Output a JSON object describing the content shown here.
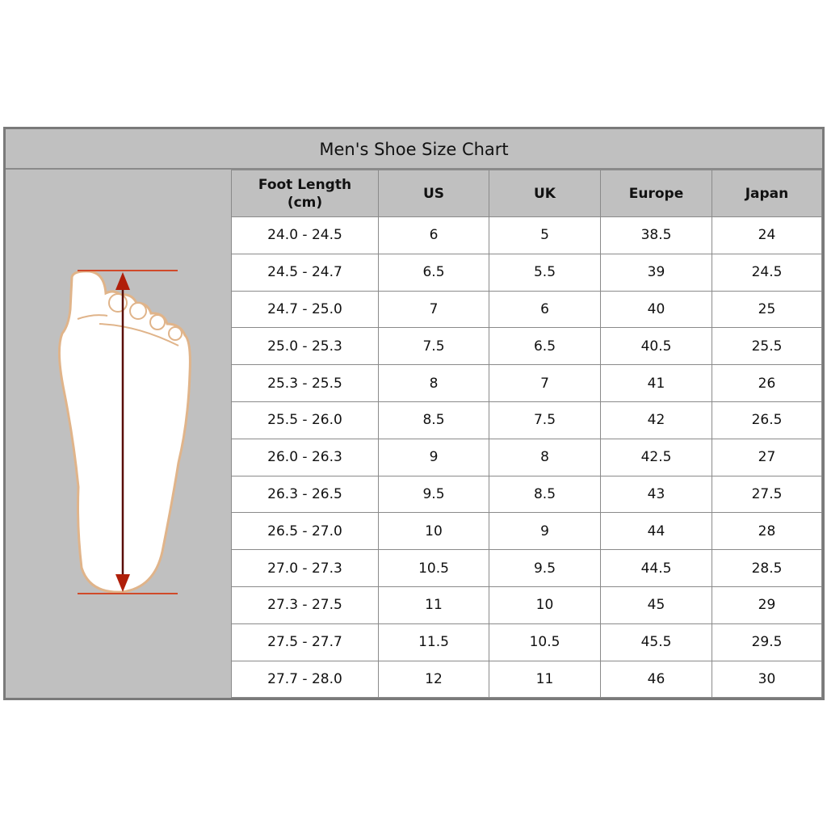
{
  "chart_data": {
    "type": "table",
    "title": "Men's Shoe Size Chart",
    "columns": [
      "Foot Length (cm)",
      "US",
      "UK",
      "Europe",
      "Japan"
    ],
    "rows": [
      [
        "24.0 - 24.5",
        "6",
        "5",
        "38.5",
        "24"
      ],
      [
        "24.5 - 24.7",
        "6.5",
        "5.5",
        "39",
        "24.5"
      ],
      [
        "24.7 - 25.0",
        "7",
        "6",
        "40",
        "25"
      ],
      [
        "25.0 - 25.3",
        "7.5",
        "6.5",
        "40.5",
        "25.5"
      ],
      [
        "25.3 - 25.5",
        "8",
        "7",
        "41",
        "26"
      ],
      [
        "25.5 - 26.0",
        "8.5",
        "7.5",
        "42",
        "26.5"
      ],
      [
        "26.0 - 26.3",
        "9",
        "8",
        "42.5",
        "27"
      ],
      [
        "26.3 - 26.5",
        "9.5",
        "8.5",
        "43",
        "27.5"
      ],
      [
        "26.5 - 27.0",
        "10",
        "9",
        "44",
        "28"
      ],
      [
        "27.0 - 27.3",
        "10.5",
        "9.5",
        "44.5",
        "28.5"
      ],
      [
        "27.3 - 27.5",
        "11",
        "10",
        "45",
        "29"
      ],
      [
        "27.5 - 27.7",
        "11.5",
        "10.5",
        "45.5",
        "29.5"
      ],
      [
        "27.7 - 28.0",
        "12",
        "11",
        "46",
        "30"
      ]
    ]
  },
  "header_lines": {
    "foot_length_1": "Foot Length",
    "foot_length_2": "(cm)"
  },
  "colors": {
    "panel": "#c0c0c0",
    "foot_outline": "#e0b48a",
    "arrow": "#8b1a0a",
    "guide_line": "#d04a2a"
  },
  "illustration": "foot-measurement-icon"
}
